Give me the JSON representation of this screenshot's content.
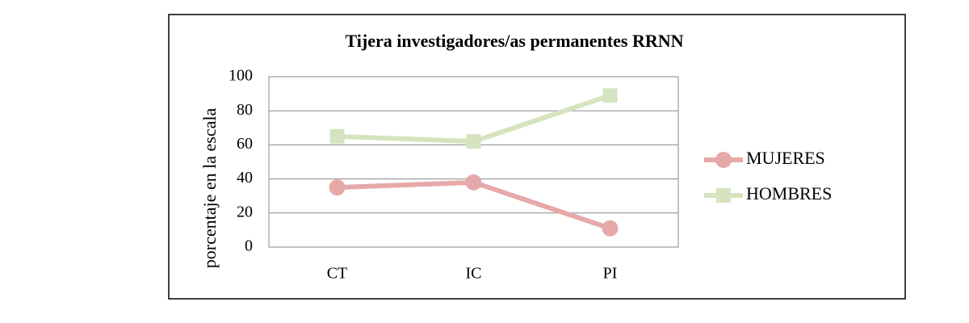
{
  "chart_data": {
    "type": "line",
    "title": "Tijera investigadores/as permanentes RRNN",
    "y_label": "porcentaje en la escala",
    "categories": [
      "CT",
      "IC",
      "PI"
    ],
    "series": [
      {
        "name": "MUJERES",
        "color": "#e6a9a9",
        "marker": "circle",
        "values": [
          35,
          38,
          11
        ]
      },
      {
        "name": "HOMBRES",
        "color": "#d5e4bf",
        "marker": "square",
        "values": [
          65,
          62,
          89
        ]
      }
    ],
    "ylim": [
      0,
      100
    ],
    "yticks": [
      0,
      20,
      40,
      60,
      80,
      100
    ],
    "grid": true,
    "legend": "right"
  }
}
